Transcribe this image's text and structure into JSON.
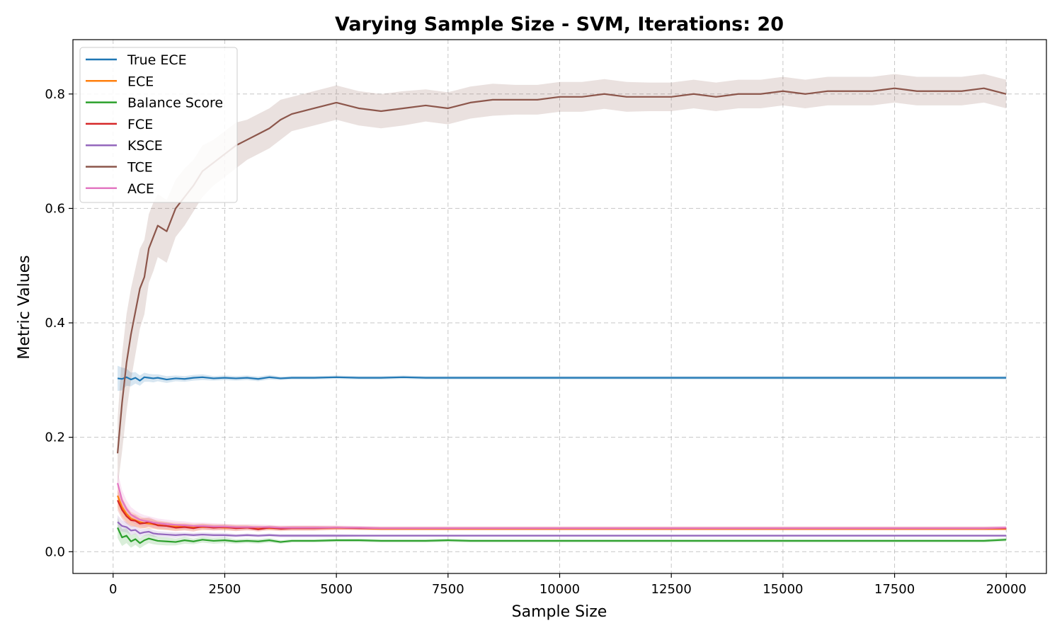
{
  "chart_data": {
    "type": "line",
    "title": "Varying Sample Size - SVM, Iterations: 20",
    "xlabel": "Sample Size",
    "ylabel": "Metric Values",
    "xlim": [
      -900,
      20900
    ],
    "ylim": [
      -0.038,
      0.895
    ],
    "xticks": [
      0,
      2500,
      5000,
      7500,
      10000,
      12500,
      15000,
      17500,
      20000
    ],
    "xtick_labels": [
      "0",
      "2500",
      "5000",
      "7500",
      "10000",
      "12500",
      "15000",
      "17500",
      "20000"
    ],
    "yticks": [
      0.0,
      0.2,
      0.4,
      0.6,
      0.8
    ],
    "ytick_labels": [
      "0.0",
      "0.2",
      "0.4",
      "0.6",
      "0.8"
    ],
    "grid": true,
    "legend_position": "top-left",
    "x": [
      100,
      200,
      300,
      400,
      500,
      600,
      700,
      800,
      900,
      1000,
      1200,
      1400,
      1600,
      1800,
      2000,
      2250,
      2500,
      2750,
      3000,
      3250,
      3500,
      3750,
      4000,
      4500,
      5000,
      5500,
      6000,
      6500,
      7000,
      7500,
      8000,
      8500,
      9000,
      9500,
      10000,
      10500,
      11000,
      11500,
      12000,
      12500,
      13000,
      13500,
      14000,
      14500,
      15000,
      15500,
      16000,
      16500,
      17000,
      17500,
      18000,
      18500,
      19000,
      19500,
      20000
    ],
    "series": [
      {
        "name": "True ECE",
        "color": "#1f77b4",
        "values": [
          0.303,
          0.302,
          0.305,
          0.301,
          0.304,
          0.299,
          0.305,
          0.304,
          0.303,
          0.304,
          0.301,
          0.303,
          0.302,
          0.304,
          0.305,
          0.303,
          0.304,
          0.303,
          0.304,
          0.302,
          0.305,
          0.303,
          0.304,
          0.304,
          0.305,
          0.304,
          0.304,
          0.305,
          0.304,
          0.304,
          0.304,
          0.304,
          0.304,
          0.304,
          0.304,
          0.304,
          0.304,
          0.304,
          0.304,
          0.304,
          0.304,
          0.304,
          0.304,
          0.304,
          0.304,
          0.304,
          0.304,
          0.304,
          0.304,
          0.304,
          0.304,
          0.304,
          0.304,
          0.304,
          0.304
        ],
        "band": [
          0.022,
          0.02,
          0.015,
          0.012,
          0.01,
          0.009,
          0.008,
          0.007,
          0.007,
          0.006,
          0.006,
          0.005,
          0.005,
          0.005,
          0.005,
          0.004,
          0.004,
          0.004,
          0.004,
          0.004,
          0.004,
          0.003,
          0.003,
          0.003,
          0.003,
          0.003,
          0.003,
          0.003,
          0.003,
          0.003,
          0.003,
          0.003,
          0.003,
          0.003,
          0.003,
          0.003,
          0.003,
          0.003,
          0.003,
          0.003,
          0.003,
          0.003,
          0.003,
          0.003,
          0.003,
          0.003,
          0.003,
          0.003,
          0.003,
          0.003,
          0.003,
          0.003,
          0.003,
          0.003,
          0.003
        ]
      },
      {
        "name": "ECE",
        "color": "#ff7f0e",
        "values": [
          0.098,
          0.078,
          0.066,
          0.058,
          0.055,
          0.052,
          0.05,
          0.049,
          0.048,
          0.047,
          0.045,
          0.044,
          0.044,
          0.043,
          0.043,
          0.043,
          0.042,
          0.042,
          0.042,
          0.042,
          0.041,
          0.041,
          0.041,
          0.041,
          0.041,
          0.041,
          0.04,
          0.04,
          0.04,
          0.04,
          0.04,
          0.04,
          0.04,
          0.04,
          0.04,
          0.04,
          0.04,
          0.04,
          0.04,
          0.04,
          0.04,
          0.04,
          0.04,
          0.04,
          0.04,
          0.04,
          0.04,
          0.04,
          0.04,
          0.04,
          0.04,
          0.04,
          0.04,
          0.04,
          0.04
        ],
        "band": [
          0.02,
          0.017,
          0.014,
          0.012,
          0.011,
          0.01,
          0.009,
          0.009,
          0.008,
          0.008,
          0.007,
          0.007,
          0.006,
          0.006,
          0.006,
          0.005,
          0.005,
          0.005,
          0.005,
          0.004,
          0.004,
          0.004,
          0.004,
          0.004,
          0.003,
          0.003,
          0.003,
          0.003,
          0.003,
          0.003,
          0.003,
          0.003,
          0.003,
          0.003,
          0.003,
          0.003,
          0.003,
          0.003,
          0.003,
          0.003,
          0.003,
          0.003,
          0.003,
          0.003,
          0.003,
          0.003,
          0.003,
          0.003,
          0.003,
          0.003,
          0.003,
          0.003,
          0.003,
          0.003,
          0.003
        ]
      },
      {
        "name": "Balance Score",
        "color": "#2ca02c",
        "values": [
          0.042,
          0.025,
          0.028,
          0.018,
          0.022,
          0.015,
          0.02,
          0.023,
          0.021,
          0.019,
          0.018,
          0.017,
          0.02,
          0.018,
          0.021,
          0.019,
          0.02,
          0.018,
          0.019,
          0.018,
          0.02,
          0.017,
          0.019,
          0.019,
          0.02,
          0.02,
          0.019,
          0.019,
          0.019,
          0.02,
          0.019,
          0.019,
          0.019,
          0.019,
          0.019,
          0.019,
          0.019,
          0.019,
          0.019,
          0.019,
          0.019,
          0.019,
          0.019,
          0.019,
          0.019,
          0.019,
          0.019,
          0.019,
          0.019,
          0.019,
          0.019,
          0.019,
          0.019,
          0.019,
          0.021
        ],
        "band": [
          0.018,
          0.015,
          0.013,
          0.011,
          0.01,
          0.009,
          0.009,
          0.008,
          0.008,
          0.007,
          0.007,
          0.006,
          0.006,
          0.005,
          0.005,
          0.005,
          0.005,
          0.004,
          0.004,
          0.004,
          0.004,
          0.003,
          0.003,
          0.003,
          0.003,
          0.003,
          0.003,
          0.003,
          0.003,
          0.003,
          0.003,
          0.003,
          0.003,
          0.003,
          0.003,
          0.003,
          0.003,
          0.003,
          0.003,
          0.003,
          0.003,
          0.003,
          0.003,
          0.003,
          0.003,
          0.003,
          0.003,
          0.003,
          0.003,
          0.003,
          0.003,
          0.003,
          0.003,
          0.003,
          0.003
        ]
      },
      {
        "name": "FCE",
        "color": "#d62728",
        "values": [
          0.09,
          0.073,
          0.062,
          0.055,
          0.054,
          0.049,
          0.05,
          0.052,
          0.049,
          0.046,
          0.045,
          0.042,
          0.043,
          0.041,
          0.044,
          0.042,
          0.043,
          0.041,
          0.042,
          0.039,
          0.042,
          0.04,
          0.041,
          0.041,
          0.042,
          0.041,
          0.041,
          0.041,
          0.041,
          0.041,
          0.041,
          0.041,
          0.041,
          0.041,
          0.041,
          0.041,
          0.041,
          0.041,
          0.041,
          0.041,
          0.041,
          0.041,
          0.041,
          0.041,
          0.041,
          0.041,
          0.041,
          0.041,
          0.041,
          0.041,
          0.041,
          0.041,
          0.041,
          0.041,
          0.041
        ],
        "band": [
          0.018,
          0.016,
          0.013,
          0.011,
          0.01,
          0.009,
          0.009,
          0.008,
          0.008,
          0.007,
          0.007,
          0.006,
          0.006,
          0.006,
          0.005,
          0.005,
          0.005,
          0.005,
          0.004,
          0.004,
          0.004,
          0.004,
          0.004,
          0.004,
          0.003,
          0.003,
          0.003,
          0.003,
          0.003,
          0.003,
          0.003,
          0.003,
          0.003,
          0.003,
          0.003,
          0.003,
          0.003,
          0.003,
          0.003,
          0.003,
          0.003,
          0.003,
          0.003,
          0.003,
          0.003,
          0.003,
          0.003,
          0.003,
          0.003,
          0.003,
          0.003,
          0.003,
          0.003,
          0.003,
          0.003
        ]
      },
      {
        "name": "KSCE",
        "color": "#9467bd",
        "values": [
          0.052,
          0.045,
          0.043,
          0.037,
          0.038,
          0.032,
          0.034,
          0.035,
          0.032,
          0.031,
          0.03,
          0.029,
          0.03,
          0.029,
          0.03,
          0.029,
          0.029,
          0.028,
          0.029,
          0.028,
          0.029,
          0.028,
          0.028,
          0.028,
          0.028,
          0.028,
          0.028,
          0.028,
          0.028,
          0.028,
          0.028,
          0.028,
          0.028,
          0.028,
          0.028,
          0.028,
          0.028,
          0.028,
          0.028,
          0.028,
          0.028,
          0.028,
          0.028,
          0.028,
          0.028,
          0.028,
          0.028,
          0.028,
          0.028,
          0.028,
          0.028,
          0.028,
          0.028,
          0.028,
          0.028
        ],
        "band": [
          0.012,
          0.01,
          0.009,
          0.008,
          0.007,
          0.007,
          0.006,
          0.006,
          0.006,
          0.005,
          0.005,
          0.005,
          0.004,
          0.004,
          0.004,
          0.004,
          0.004,
          0.003,
          0.003,
          0.003,
          0.003,
          0.003,
          0.003,
          0.003,
          0.003,
          0.002,
          0.002,
          0.002,
          0.002,
          0.002,
          0.002,
          0.002,
          0.002,
          0.002,
          0.002,
          0.002,
          0.002,
          0.002,
          0.002,
          0.002,
          0.002,
          0.002,
          0.002,
          0.002,
          0.002,
          0.002,
          0.002,
          0.002,
          0.002,
          0.002,
          0.002,
          0.002,
          0.002,
          0.002,
          0.002
        ]
      },
      {
        "name": "TCE",
        "color": "#8c564b",
        "values": [
          0.172,
          0.26,
          0.33,
          0.38,
          0.42,
          0.46,
          0.48,
          0.53,
          0.55,
          0.57,
          0.56,
          0.6,
          0.62,
          0.64,
          0.665,
          0.68,
          0.695,
          0.71,
          0.72,
          0.73,
          0.74,
          0.755,
          0.765,
          0.775,
          0.785,
          0.775,
          0.77,
          0.775,
          0.78,
          0.775,
          0.785,
          0.79,
          0.79,
          0.79,
          0.795,
          0.795,
          0.8,
          0.795,
          0.795,
          0.795,
          0.8,
          0.795,
          0.8,
          0.8,
          0.805,
          0.8,
          0.805,
          0.805,
          0.805,
          0.81,
          0.805,
          0.805,
          0.805,
          0.81,
          0.8
        ],
        "band": [
          0.06,
          0.085,
          0.085,
          0.08,
          0.075,
          0.07,
          0.065,
          0.06,
          0.06,
          0.055,
          0.055,
          0.05,
          0.05,
          0.045,
          0.045,
          0.04,
          0.04,
          0.04,
          0.035,
          0.035,
          0.035,
          0.035,
          0.03,
          0.03,
          0.03,
          0.03,
          0.03,
          0.03,
          0.028,
          0.028,
          0.028,
          0.028,
          0.026,
          0.026,
          0.026,
          0.026,
          0.026,
          0.026,
          0.025,
          0.025,
          0.025,
          0.025,
          0.025,
          0.025,
          0.025,
          0.025,
          0.025,
          0.025,
          0.025,
          0.025,
          0.025,
          0.025,
          0.025,
          0.025,
          0.025
        ]
      },
      {
        "name": "ACE",
        "color": "#e377c2",
        "values": [
          0.12,
          0.09,
          0.075,
          0.065,
          0.06,
          0.056,
          0.054,
          0.053,
          0.051,
          0.05,
          0.048,
          0.047,
          0.046,
          0.045,
          0.045,
          0.044,
          0.044,
          0.043,
          0.043,
          0.043,
          0.043,
          0.042,
          0.042,
          0.042,
          0.042,
          0.042,
          0.041,
          0.041,
          0.041,
          0.041,
          0.041,
          0.041,
          0.041,
          0.041,
          0.041,
          0.041,
          0.041,
          0.041,
          0.041,
          0.041,
          0.041,
          0.041,
          0.041,
          0.041,
          0.041,
          0.041,
          0.041,
          0.041,
          0.041,
          0.041,
          0.041,
          0.041,
          0.041,
          0.041,
          0.042
        ],
        "band": [
          0.02,
          0.018,
          0.015,
          0.013,
          0.012,
          0.011,
          0.01,
          0.009,
          0.009,
          0.008,
          0.008,
          0.007,
          0.007,
          0.006,
          0.006,
          0.006,
          0.005,
          0.005,
          0.005,
          0.005,
          0.004,
          0.004,
          0.004,
          0.004,
          0.004,
          0.003,
          0.003,
          0.003,
          0.003,
          0.003,
          0.003,
          0.003,
          0.003,
          0.003,
          0.003,
          0.003,
          0.003,
          0.003,
          0.003,
          0.003,
          0.003,
          0.003,
          0.003,
          0.003,
          0.003,
          0.003,
          0.003,
          0.003,
          0.003,
          0.003,
          0.003,
          0.003,
          0.003,
          0.003,
          0.003
        ]
      }
    ]
  }
}
